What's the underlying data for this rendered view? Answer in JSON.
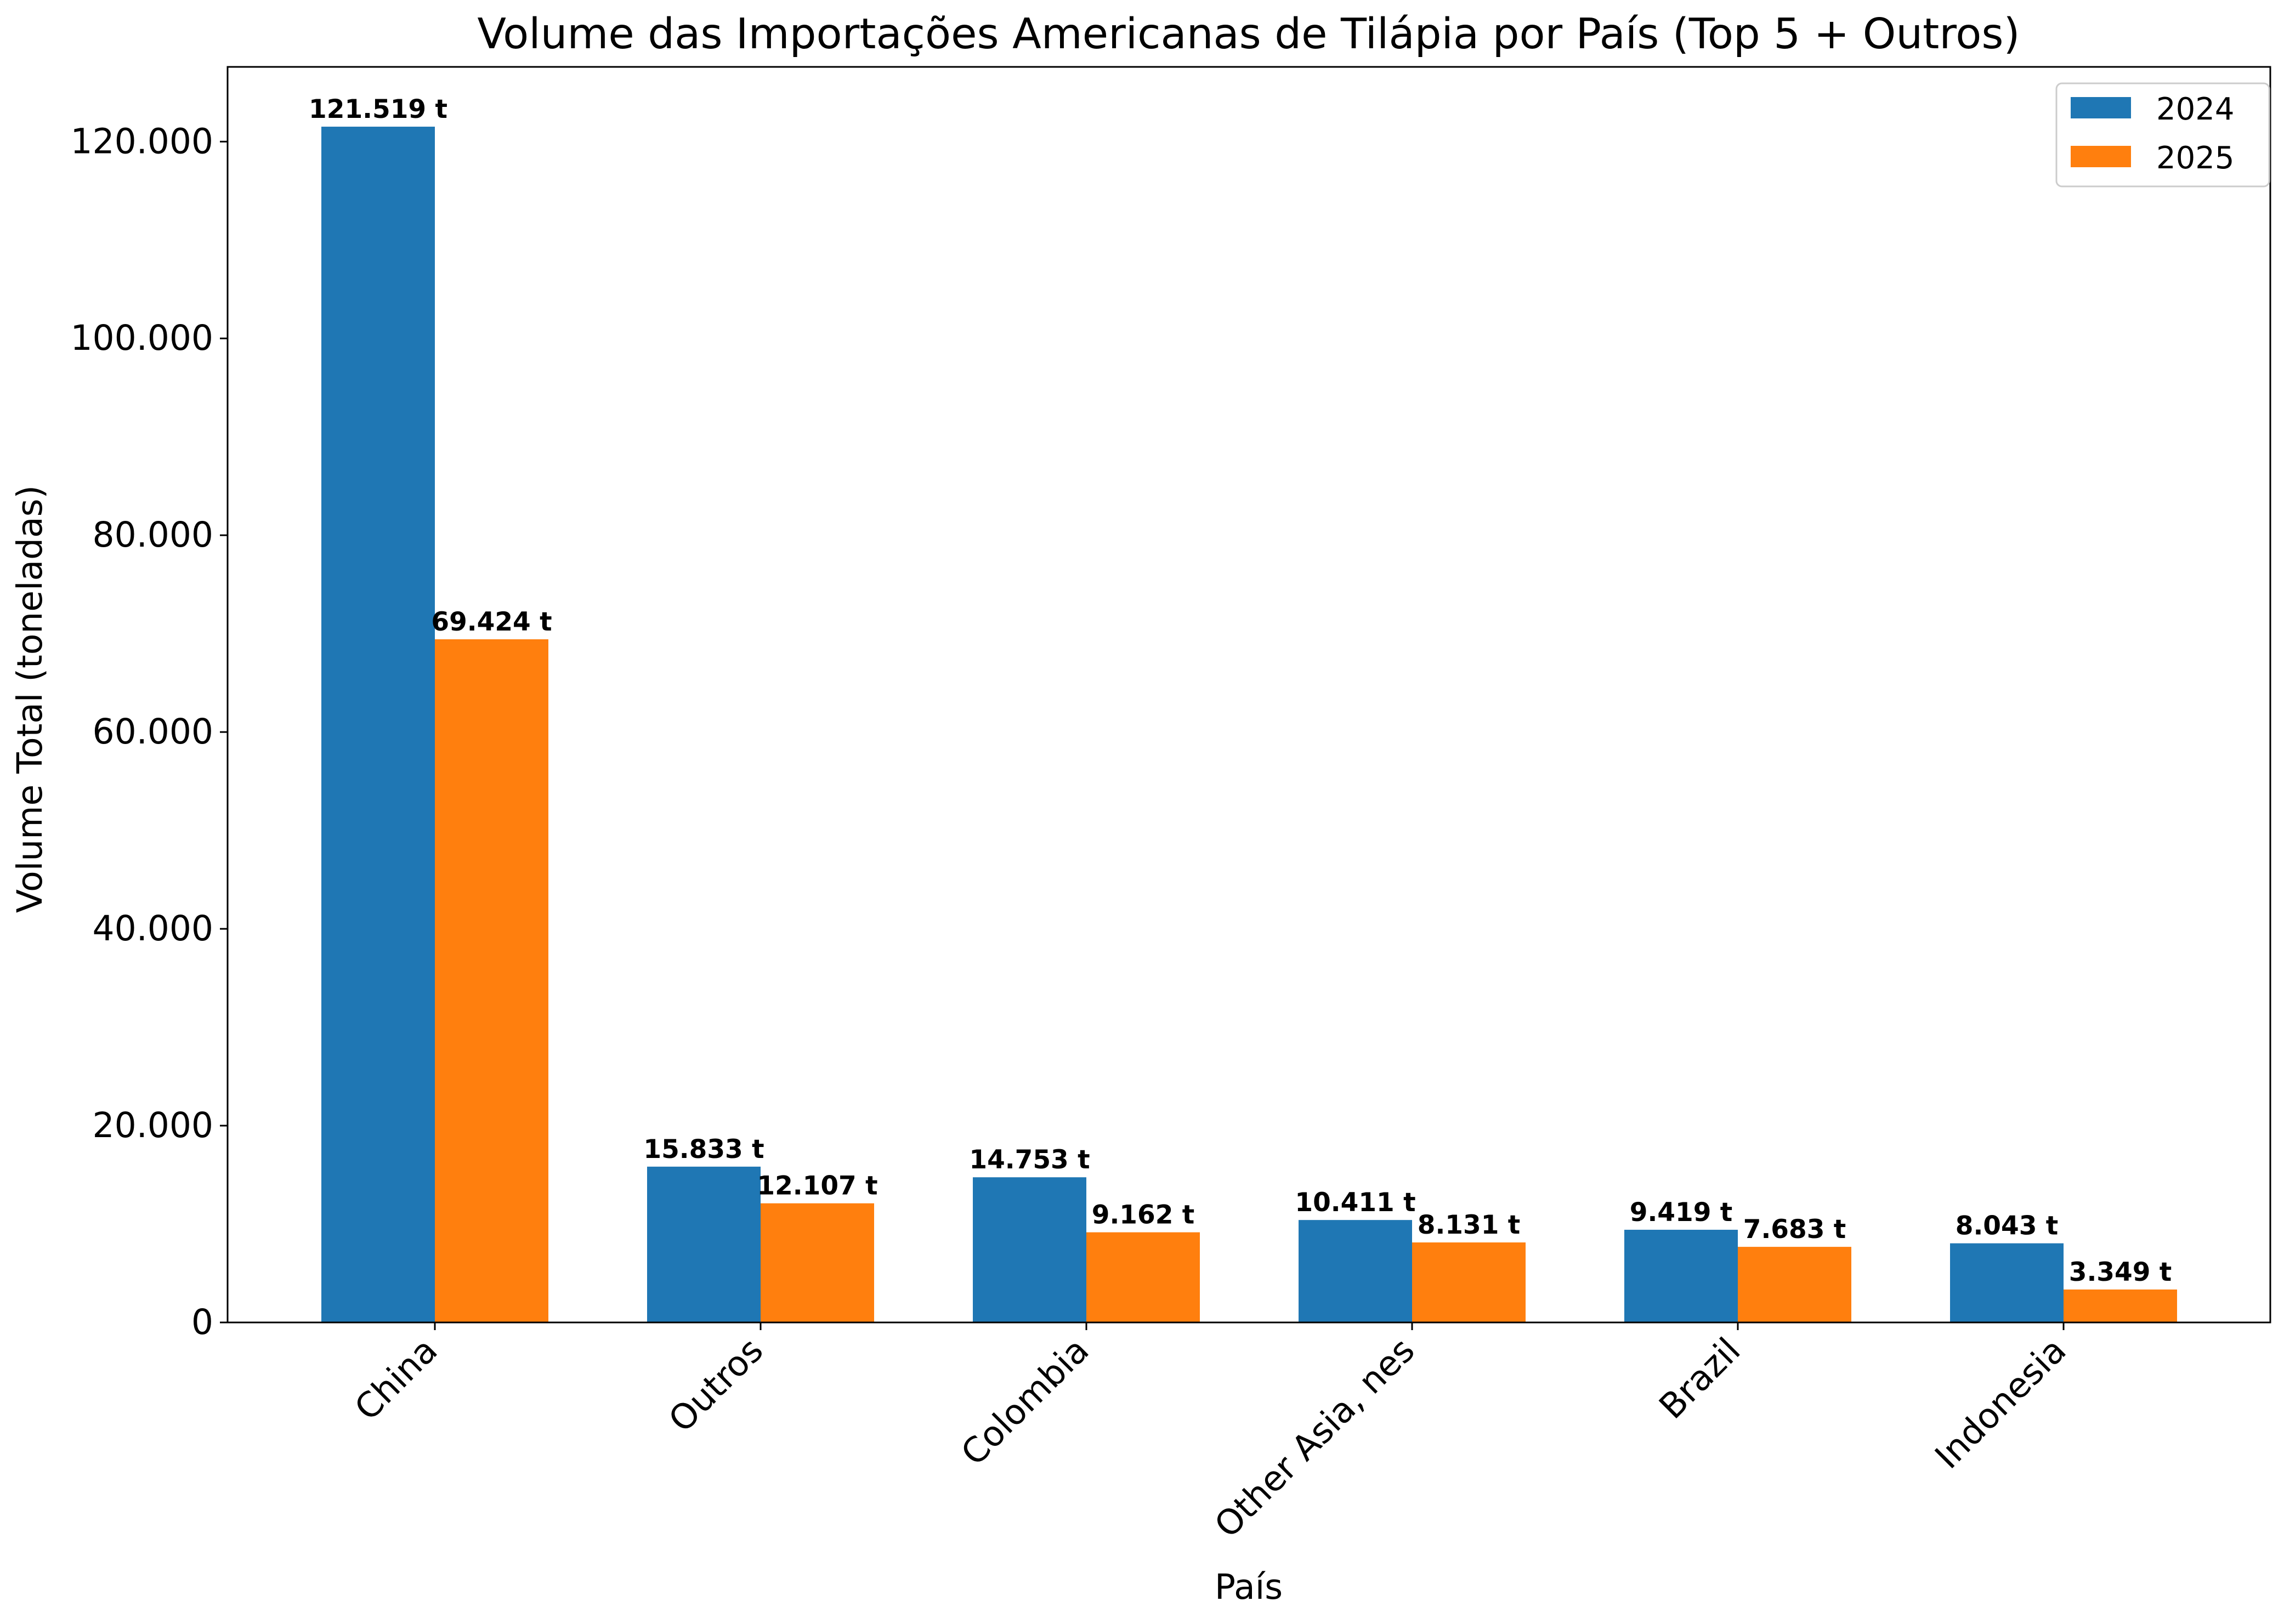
{
  "chart_data": {
    "type": "bar",
    "title": "Volume das Importações Americanas de Tilápia por País (Top 5 + Outros)",
    "xlabel": "País",
    "ylabel": "Volume Total (toneladas)",
    "categories": [
      "China",
      "Outros",
      "Colombia",
      "Other Asia, nes",
      "Brazil",
      "Indonesia"
    ],
    "series": [
      {
        "name": "2024",
        "color": "#1f77b4",
        "values": [
          121519,
          15833,
          14753,
          10411,
          9419,
          8043
        ],
        "labels": [
          "121.519 t",
          "15.833 t",
          "14.753 t",
          "10.411 t",
          "9.419 t",
          "8.043 t"
        ]
      },
      {
        "name": "2025",
        "color": "#ff7f0e",
        "values": [
          69424,
          12107,
          9162,
          8131,
          7683,
          3349
        ],
        "labels": [
          "69.424 t",
          "12.107 t",
          "9.162 t",
          "8.131 t",
          "7.683 t",
          "3.349 t"
        ]
      }
    ],
    "ylim": [
      0,
      127594
    ],
    "yticks": [
      0,
      20000,
      40000,
      60000,
      80000,
      100000,
      120000
    ],
    "ytick_labels": [
      "0",
      "20.000",
      "40.000",
      "60.000",
      "80.000",
      "100.000",
      "120.000"
    ],
    "legend": {
      "placement": "top-right",
      "entries": [
        "2024",
        "2025"
      ]
    },
    "grid": false
  }
}
